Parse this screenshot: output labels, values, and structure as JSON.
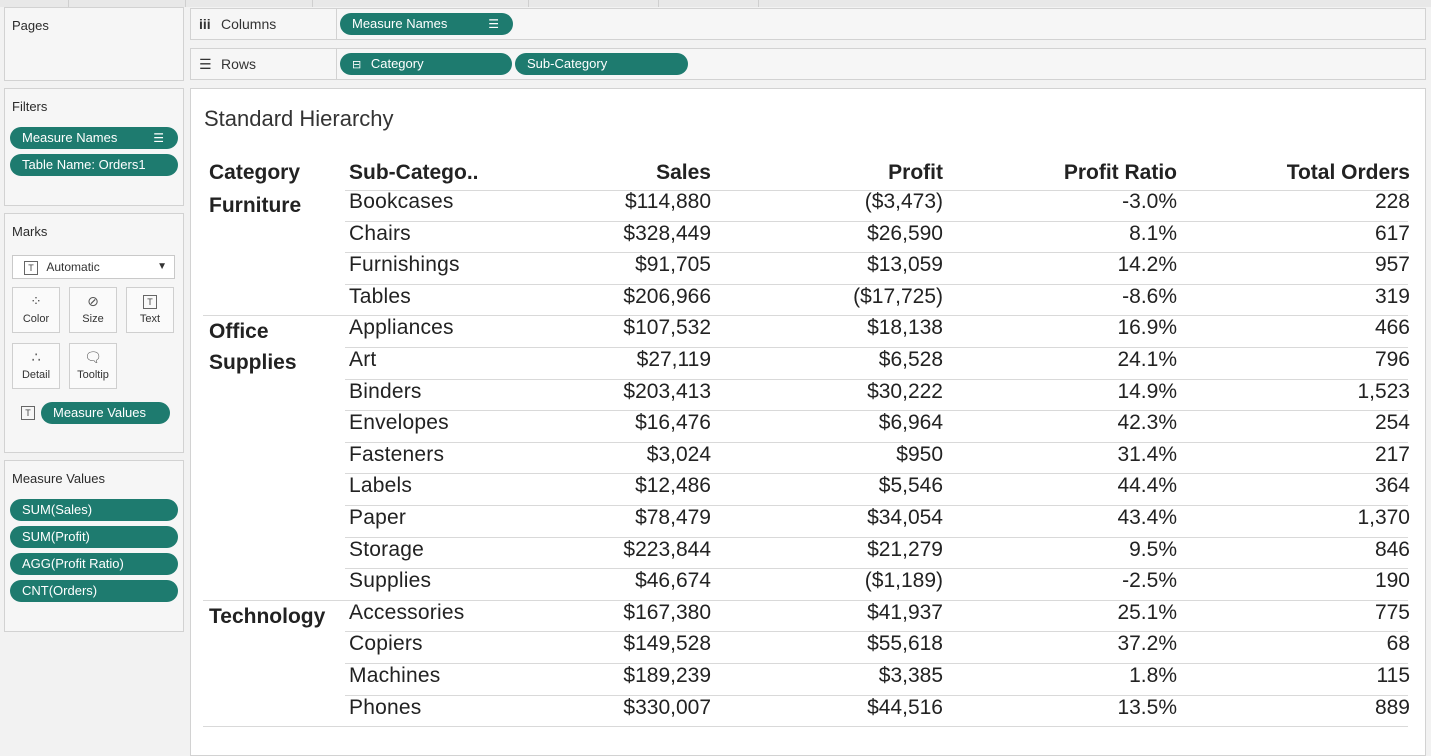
{
  "shelves": {
    "pages_label": "Pages",
    "columns_label": "Columns",
    "columns_pills": [
      "Measure Names"
    ],
    "rows_label": "Rows",
    "rows_pills": [
      "Category",
      "Sub-Category"
    ]
  },
  "filters": {
    "title": "Filters",
    "pills": [
      "Measure Names",
      "Table Name: Orders1"
    ]
  },
  "marks": {
    "title": "Marks",
    "type": "Automatic",
    "buttons": [
      "Color",
      "Size",
      "Text",
      "Detail",
      "Tooltip"
    ],
    "text_pill": "Measure Values"
  },
  "measure_values": {
    "title": "Measure Values",
    "pills": [
      "SUM(Sales)",
      "SUM(Profit)",
      "AGG(Profit Ratio)",
      "CNT(Orders)"
    ]
  },
  "view": {
    "title": "Standard Hierarchy",
    "headers": [
      "Category",
      "Sub-Catego..",
      "Sales",
      "Profit",
      "Profit Ratio",
      "Total Orders"
    ],
    "groups": [
      {
        "category": "Furniture",
        "rows": [
          {
            "sub": "Bookcases",
            "sales": "$114,880",
            "profit": "($3,473)",
            "ratio": "-3.0%",
            "orders": "228"
          },
          {
            "sub": "Chairs",
            "sales": "$328,449",
            "profit": "$26,590",
            "ratio": "8.1%",
            "orders": "617"
          },
          {
            "sub": "Furnishings",
            "sales": "$91,705",
            "profit": "$13,059",
            "ratio": "14.2%",
            "orders": "957"
          },
          {
            "sub": "Tables",
            "sales": "$206,966",
            "profit": "($17,725)",
            "ratio": "-8.6%",
            "orders": "319"
          }
        ]
      },
      {
        "category": "Office Supplies",
        "rows": [
          {
            "sub": "Appliances",
            "sales": "$107,532",
            "profit": "$18,138",
            "ratio": "16.9%",
            "orders": "466"
          },
          {
            "sub": "Art",
            "sales": "$27,119",
            "profit": "$6,528",
            "ratio": "24.1%",
            "orders": "796"
          },
          {
            "sub": "Binders",
            "sales": "$203,413",
            "profit": "$30,222",
            "ratio": "14.9%",
            "orders": "1,523"
          },
          {
            "sub": "Envelopes",
            "sales": "$16,476",
            "profit": "$6,964",
            "ratio": "42.3%",
            "orders": "254"
          },
          {
            "sub": "Fasteners",
            "sales": "$3,024",
            "profit": "$950",
            "ratio": "31.4%",
            "orders": "217"
          },
          {
            "sub": "Labels",
            "sales": "$12,486",
            "profit": "$5,546",
            "ratio": "44.4%",
            "orders": "364"
          },
          {
            "sub": "Paper",
            "sales": "$78,479",
            "profit": "$34,054",
            "ratio": "43.4%",
            "orders": "1,370"
          },
          {
            "sub": "Storage",
            "sales": "$223,844",
            "profit": "$21,279",
            "ratio": "9.5%",
            "orders": "846"
          },
          {
            "sub": "Supplies",
            "sales": "$46,674",
            "profit": "($1,189)",
            "ratio": "-2.5%",
            "orders": "190"
          }
        ]
      },
      {
        "category": "Technology",
        "rows": [
          {
            "sub": "Accessories",
            "sales": "$167,380",
            "profit": "$41,937",
            "ratio": "25.1%",
            "orders": "775"
          },
          {
            "sub": "Copiers",
            "sales": "$149,528",
            "profit": "$55,618",
            "ratio": "37.2%",
            "orders": "68"
          },
          {
            "sub": "Machines",
            "sales": "$189,239",
            "profit": "$3,385",
            "ratio": "1.8%",
            "orders": "115"
          },
          {
            "sub": "Phones",
            "sales": "$330,007",
            "profit": "$44,516",
            "ratio": "13.5%",
            "orders": "889"
          }
        ]
      }
    ]
  },
  "colors": {
    "pill": "#1e7b6f",
    "panel_bg": "#f6f6f6",
    "view_bg": "#ffffff"
  }
}
